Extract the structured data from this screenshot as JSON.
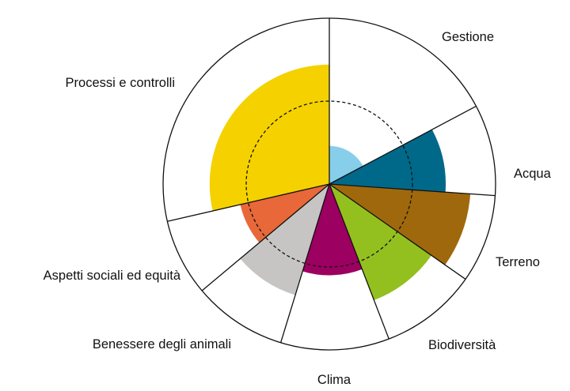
{
  "chart_data": {
    "type": "polar-area",
    "max_value": 1,
    "reference_value": 0.5,
    "reference_style": "dashed",
    "categories": [
      {
        "label": "Gestione",
        "value": 0.23,
        "color": "#87ceeb",
        "start_deg": 0,
        "end_deg": 62
      },
      {
        "label": "Acqua",
        "value": 0.7,
        "color": "#00698a",
        "start_deg": 62,
        "end_deg": 94
      },
      {
        "label": "Terreno",
        "value": 0.85,
        "color": "#a0680c",
        "start_deg": 94,
        "end_deg": 125
      },
      {
        "label": "Biodiversità",
        "value": 0.75,
        "color": "#93c01f",
        "start_deg": 125,
        "end_deg": 159
      },
      {
        "label": "Clima",
        "value": 0.55,
        "color": "#9c0060",
        "start_deg": 159,
        "end_deg": 197
      },
      {
        "label": "Benessere degli animali",
        "value": 0.7,
        "color": "#c6c5c4",
        "start_deg": 197,
        "end_deg": 230
      },
      {
        "label": "Aspetti sociali ed equità",
        "value": 0.55,
        "color": "#e8683a",
        "start_deg": 230,
        "end_deg": 257
      },
      {
        "label": "Processi e controlli",
        "value": 0.72,
        "color": "#f5d100",
        "start_deg": 257,
        "end_deg": 360
      }
    ]
  }
}
